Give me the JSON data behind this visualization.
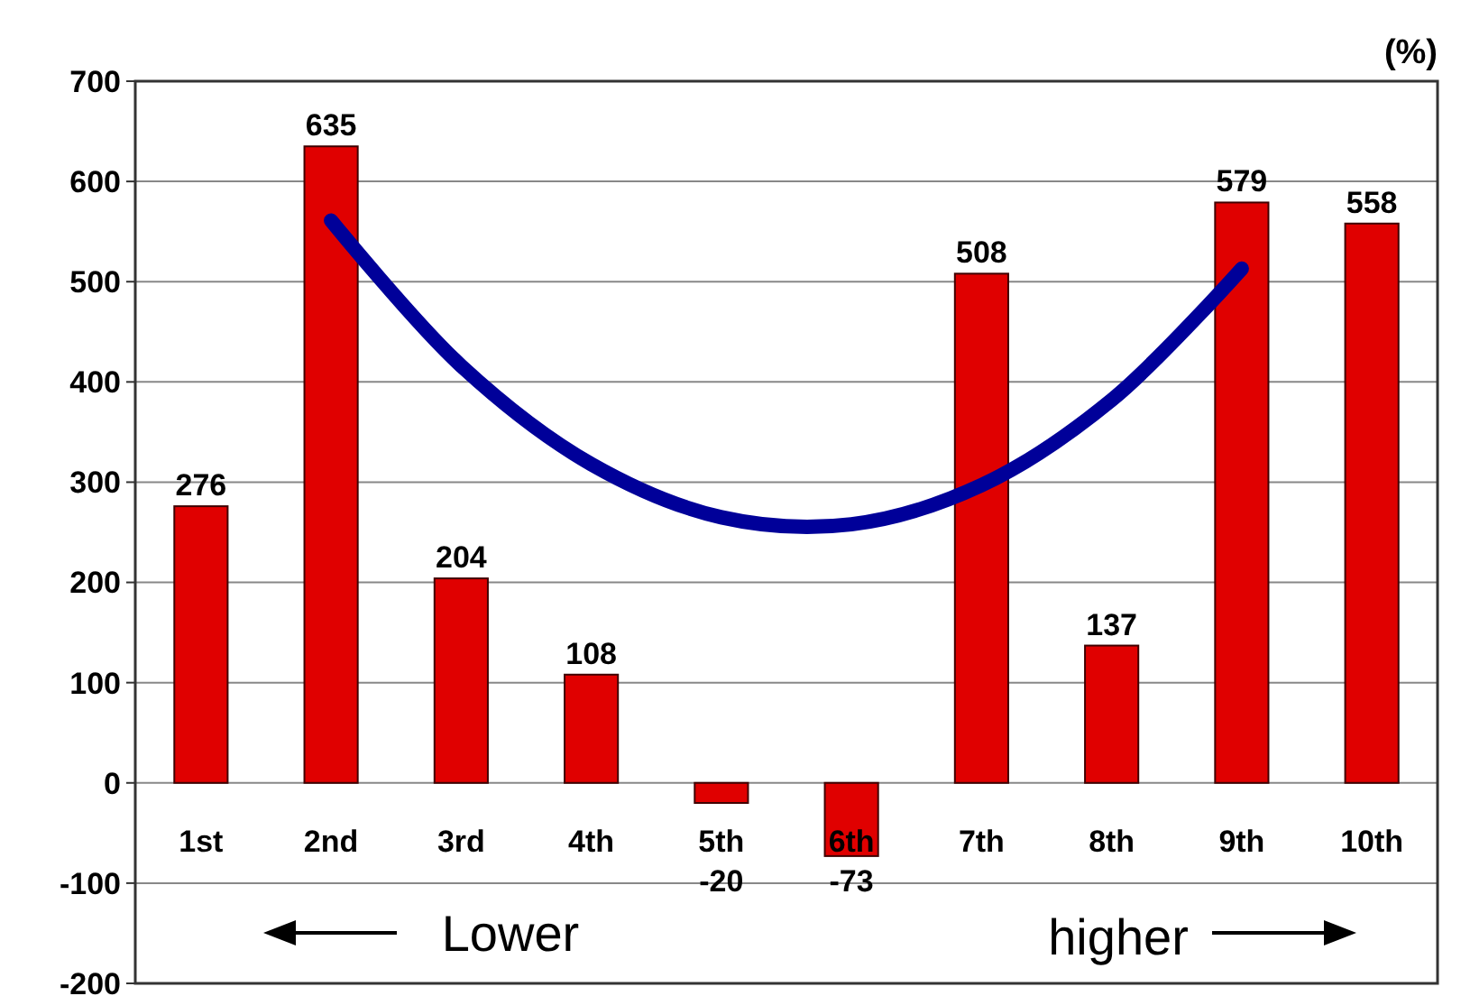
{
  "chart_data": {
    "type": "bar",
    "ylabel": "(%)",
    "categories": [
      "1st",
      "2nd",
      "3rd",
      "4th",
      "5th",
      "6th",
      "7th",
      "8th",
      "9th",
      "10th"
    ],
    "series": [
      {
        "color": "#e00000",
        "values": [
          276,
          635,
          204,
          108,
          -20,
          -73,
          508,
          137,
          579,
          558
        ],
        "value_labels": [
          "276",
          "635",
          "204",
          "108",
          "-20",
          "-73",
          "508",
          "137",
          "579",
          "558"
        ]
      },
      {
        "type": "line",
        "color": "#000099",
        "x": [
          "2nd",
          "3rd",
          "4th",
          "5th",
          "6th",
          "7th",
          "8th",
          "9th"
        ],
        "values": [
          561,
          416,
          318,
          265,
          258,
          297,
          382,
          513
        ]
      }
    ],
    "ylim": [
      -200,
      700
    ],
    "yticks": [
      -200,
      -100,
      0,
      100,
      200,
      300,
      400,
      500,
      600,
      700
    ],
    "grid": "y",
    "annotations": [
      "Lower",
      "higher"
    ]
  }
}
